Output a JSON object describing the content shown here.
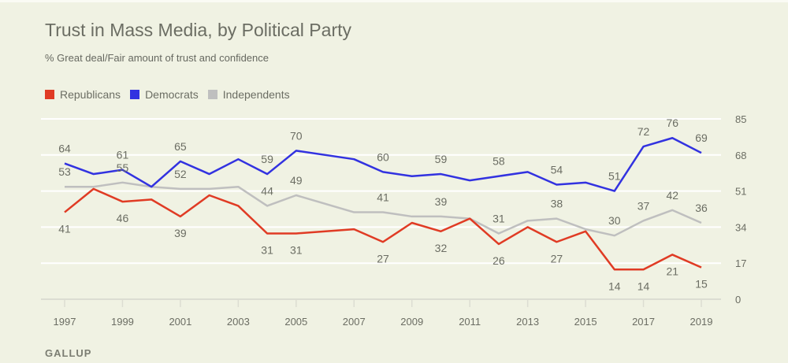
{
  "chart_data": {
    "type": "line",
    "title": "Trust in Mass Media, by Political Party",
    "subtitle": "% Great deal/Fair amount of trust and confidence",
    "source": "GALLUP",
    "xlabel": "",
    "ylabel": "",
    "x": [
      1997,
      1998,
      1999,
      2000,
      2001,
      2002,
      2003,
      2004,
      2005,
      2007,
      2008,
      2009,
      2010,
      2011,
      2012,
      2013,
      2014,
      2015,
      2016,
      2017,
      2018,
      2019
    ],
    "x_ticks": [
      "1997",
      "1999",
      "2001",
      "2003",
      "2005",
      "2007",
      "2009",
      "2011",
      "2013",
      "2015",
      "2017",
      "2019"
    ],
    "y_ticks": [
      "0",
      "17",
      "34",
      "51",
      "68",
      "85"
    ],
    "ylim": [
      0,
      85
    ],
    "xlim": [
      1997,
      2019
    ],
    "grid": true,
    "y_axis_position": "right",
    "legend_position": "top-left",
    "series": [
      {
        "name": "Republicans",
        "color": "#e03b24",
        "values": [
          41,
          52,
          46,
          47,
          39,
          49,
          44,
          31,
          31,
          33,
          27,
          36,
          32,
          38,
          26,
          34,
          27,
          32,
          14,
          14,
          21,
          15
        ],
        "labeled_years": [
          1997,
          1999,
          2001,
          2004,
          2005,
          2008,
          2010,
          2012,
          2014,
          2016,
          2017,
          2018,
          2019
        ],
        "label_side": "below"
      },
      {
        "name": "Democrats",
        "color": "#3232e0",
        "values": [
          64,
          59,
          61,
          53,
          65,
          59,
          66,
          59,
          70,
          66,
          60,
          58,
          59,
          56,
          58,
          60,
          54,
          55,
          51,
          72,
          76,
          69
        ],
        "labeled_years": [
          1997,
          1999,
          2001,
          2004,
          2005,
          2008,
          2010,
          2012,
          2014,
          2016,
          2017,
          2018,
          2019
        ],
        "label_side": "above"
      },
      {
        "name": "Independents",
        "color": "#bfbfbf",
        "values": [
          53,
          53,
          55,
          53,
          52,
          52,
          53,
          44,
          49,
          41,
          41,
          39,
          39,
          38,
          31,
          37,
          38,
          33,
          30,
          37,
          42,
          36
        ],
        "labeled_years": [
          1997,
          1999,
          2001,
          2004,
          2005,
          2008,
          2010,
          2012,
          2014,
          2016,
          2017,
          2018,
          2019
        ],
        "label_side": "above"
      }
    ]
  }
}
